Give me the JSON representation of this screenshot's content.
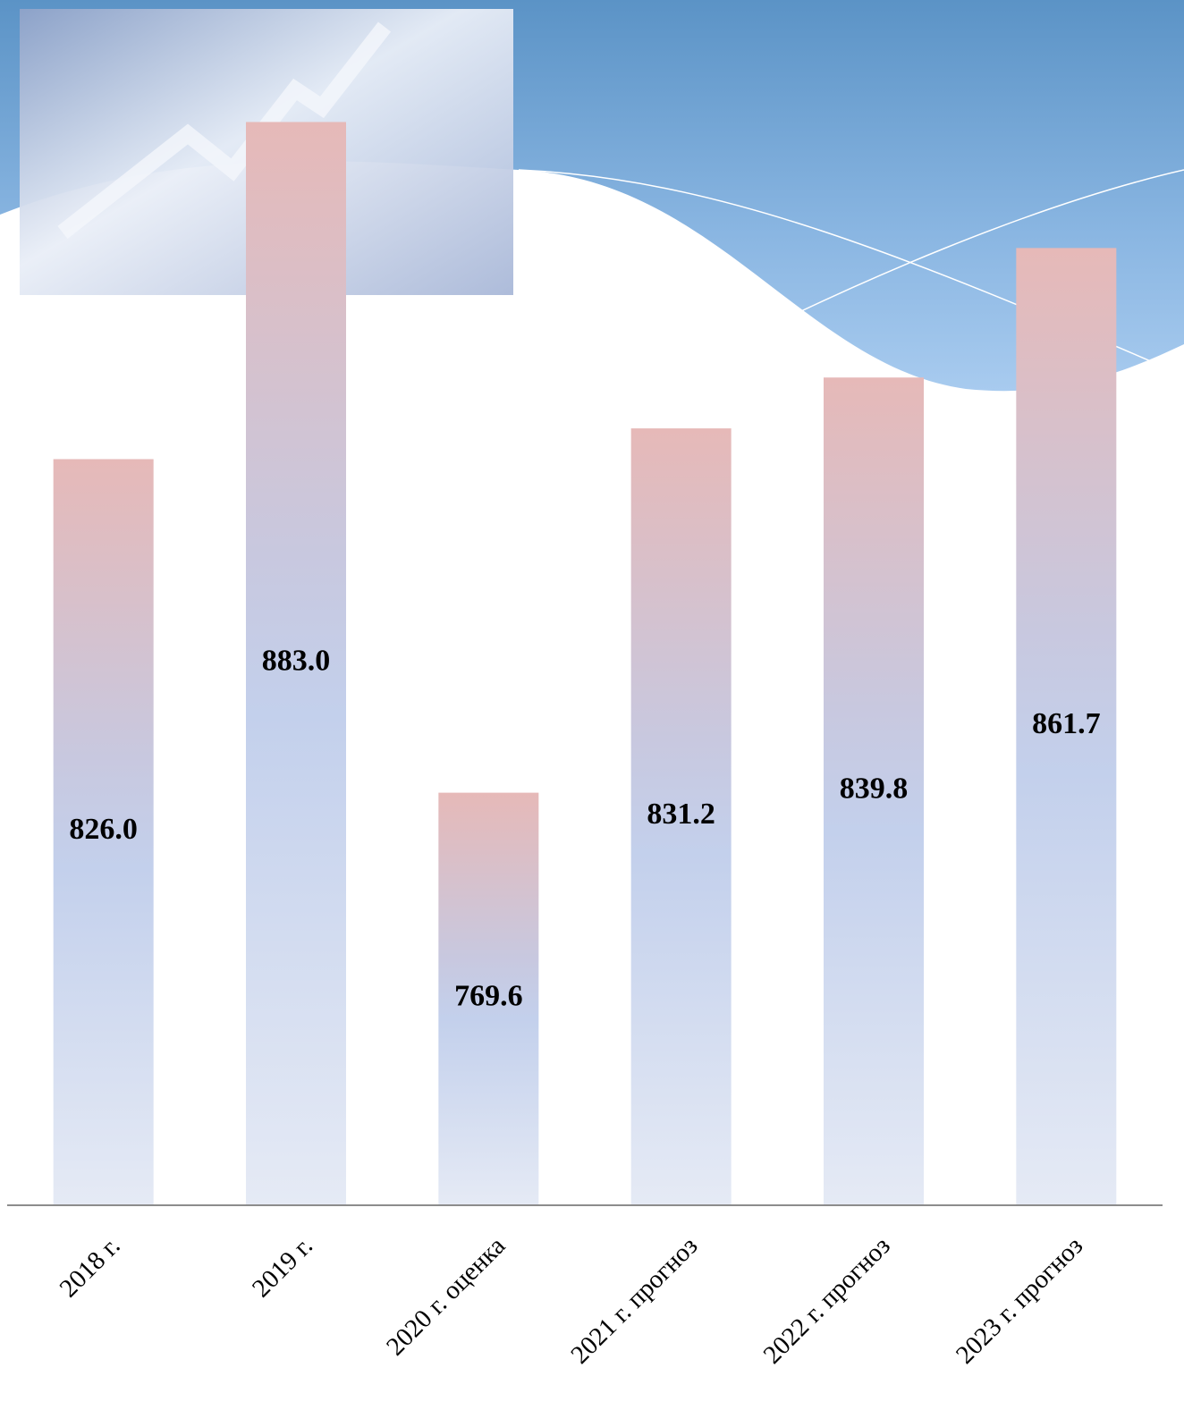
{
  "chart_data": {
    "type": "bar",
    "categories": [
      "2018 г.",
      "2019 г.",
      "2020 г. оценка",
      "2021 г. прогноз",
      "2022 г. прогноз",
      "2023 г. прогноз"
    ],
    "values": [
      826.0,
      883.0,
      769.6,
      831.2,
      839.8,
      861.7
    ],
    "value_labels": [
      "826.0",
      "883.0",
      "769.6",
      "831.2",
      "839.8",
      "861.7"
    ],
    "ylim": [
      700,
      900
    ]
  }
}
